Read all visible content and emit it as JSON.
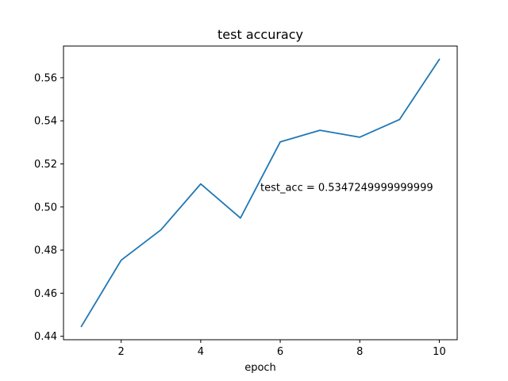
{
  "chart_data": {
    "type": "line",
    "title": "test accuracy",
    "xlabel": "epoch",
    "ylabel": "",
    "x": [
      1,
      2,
      3,
      4,
      5,
      6,
      7,
      8,
      9,
      10
    ],
    "series": [
      {
        "values": [
          0.4446,
          0.4753,
          0.4894,
          0.5107,
          0.4949,
          0.5302,
          0.5356,
          0.5324,
          0.5406,
          0.5685
        ]
      }
    ],
    "xlim": [
      0.55,
      10.45
    ],
    "ylim": [
      0.4384,
      0.5747
    ],
    "xticks": [
      2,
      4,
      6,
      8,
      10
    ],
    "yticks": [
      0.44,
      0.46,
      0.48,
      0.5,
      0.52,
      0.54,
      0.56
    ],
    "xtick_labels": [
      "2",
      "4",
      "6",
      "8",
      "10"
    ],
    "ytick_labels": [
      "0.44",
      "0.46",
      "0.48",
      "0.50",
      "0.52",
      "0.54",
      "0.56"
    ],
    "annotation": {
      "text": "test_acc = 0.5347249999999999",
      "x": 5.5,
      "y": 0.5075
    },
    "grid": false,
    "line_color": "#1f77b4"
  }
}
